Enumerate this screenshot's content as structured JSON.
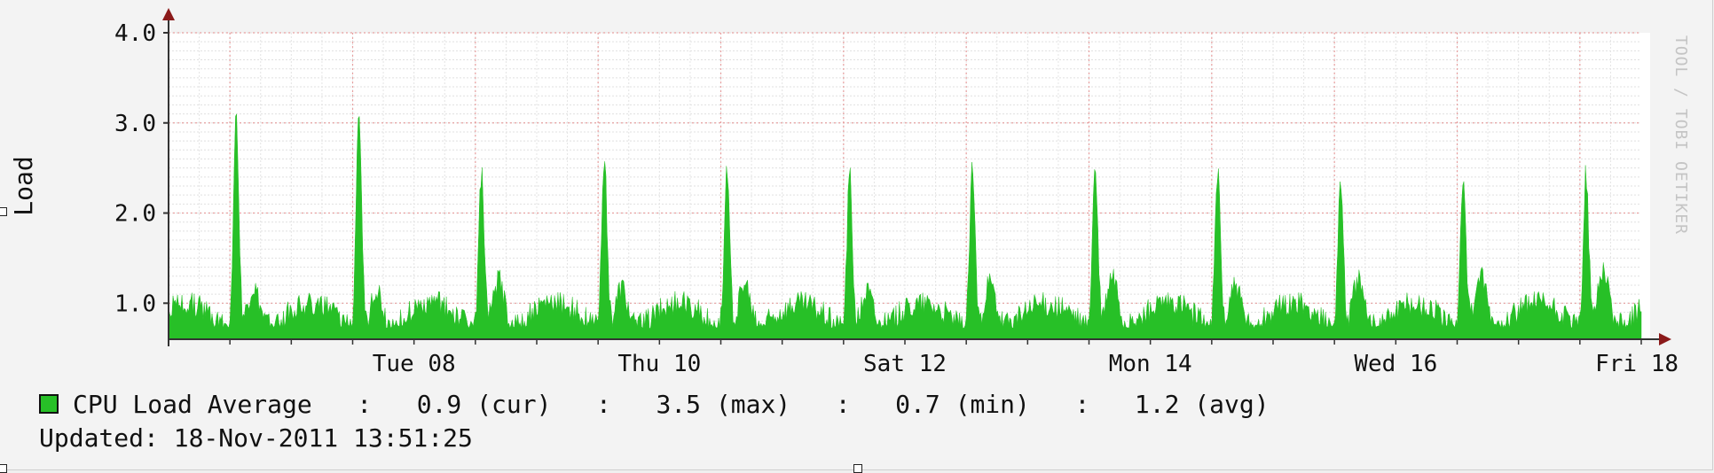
{
  "chart_data": {
    "type": "area",
    "title": "",
    "ylabel": "Load",
    "xlabel": "",
    "ylim": [
      0.6,
      4.0
    ],
    "y_ticks": [
      "1.0",
      "2.0",
      "3.0",
      "4.0"
    ],
    "y_tick_values": [
      1.0,
      2.0,
      3.0,
      4.0
    ],
    "x_range_days": [
      0,
      12
    ],
    "x_ticks": [
      {
        "label": "Tue 08",
        "day": 2
      },
      {
        "label": "Thu 10",
        "day": 4
      },
      {
        "label": "Sat 12",
        "day": 6
      },
      {
        "label": "Mon 14",
        "day": 8
      },
      {
        "label": "Wed 16",
        "day": 10
      },
      {
        "label": "Fri 18",
        "day": 12
      }
    ],
    "grid": true,
    "series": [
      {
        "name": "CPU Load Average",
        "color": "#27c027",
        "daily_peaks": [
          3.35,
          3.5,
          2.7,
          2.9,
          2.7,
          2.7,
          2.75,
          2.75,
          2.7,
          2.65,
          2.7,
          2.7
        ],
        "secondary_peaks": [
          1.5,
          1.5,
          1.6,
          1.55,
          1.55,
          1.5,
          1.55,
          1.65,
          1.55,
          1.6,
          1.65,
          1.75
        ]
      }
    ]
  },
  "legend": {
    "label": "CPU Load Average   :   0.9 (cur)   :   3.5 (max)   :   0.7 (min)   :   1.2 (avg)"
  },
  "updated": "Updated: 18-Nov-2011 13:51:25",
  "credit": "TOOL / TOBI OETIKER"
}
